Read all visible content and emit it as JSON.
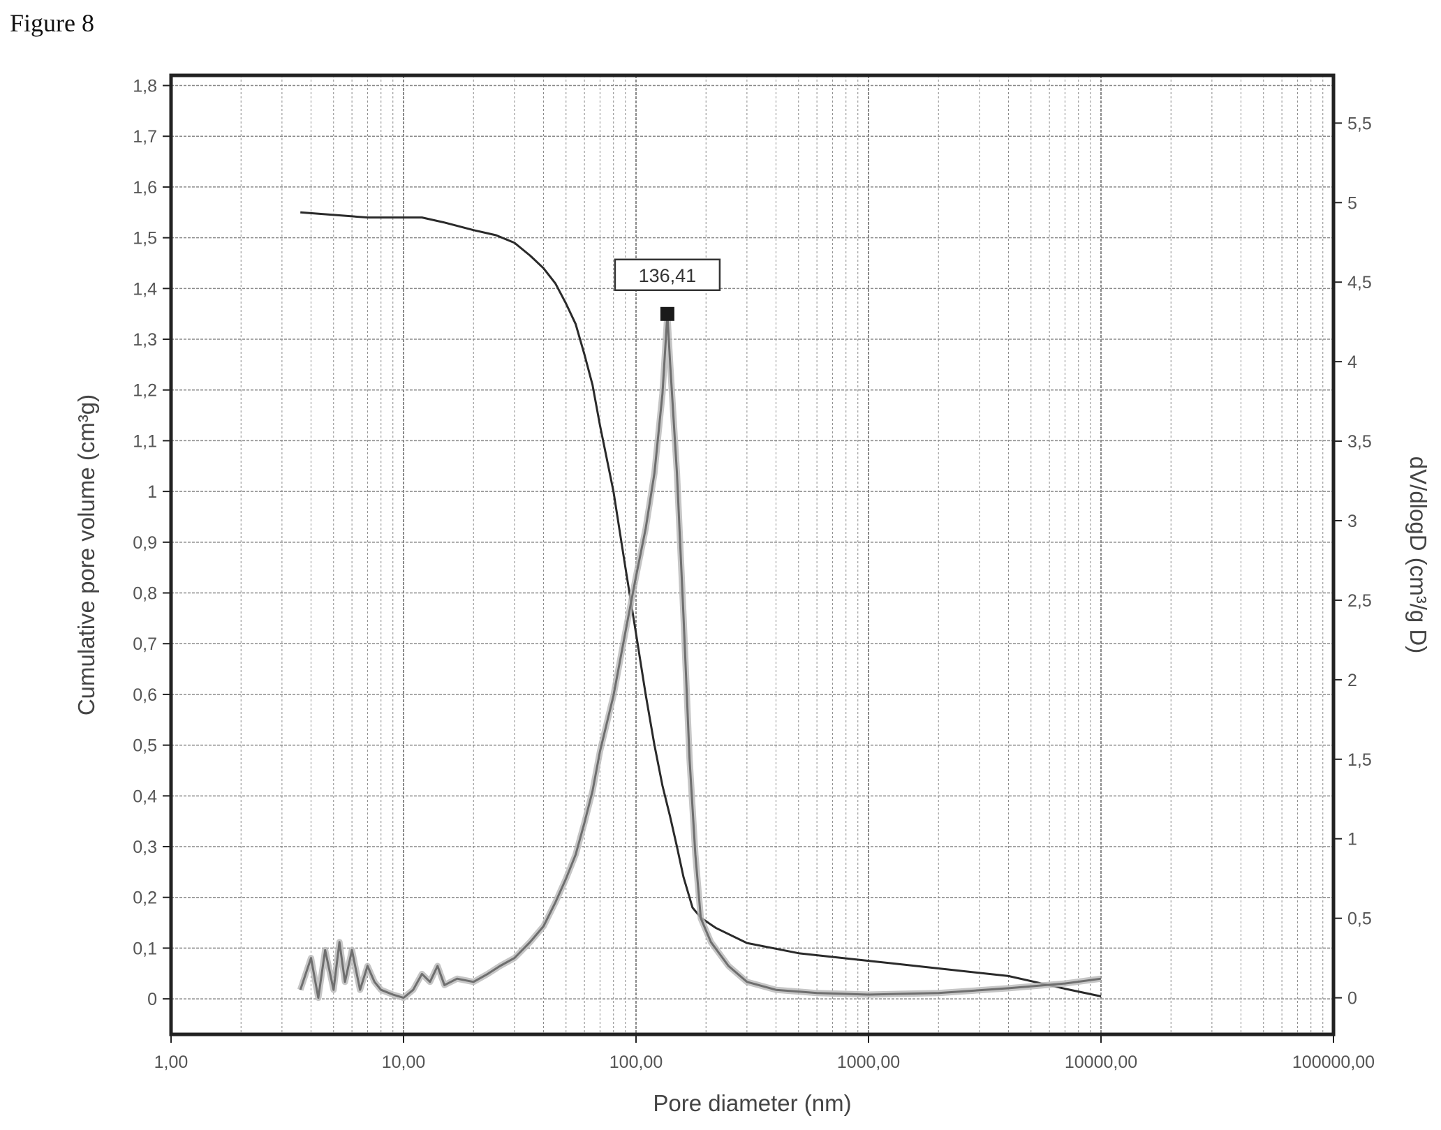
{
  "figure_label": "Figure 8",
  "colors": {
    "plot_frame": "#222222",
    "grid": "#8a8a8a",
    "cumulative_curve": "#2a2a2a",
    "distribution_curve": "#6e6e6e",
    "text": "#555555"
  },
  "chart_data": {
    "type": "line",
    "title": "",
    "xlabel": "Pore diameter (nm)",
    "ylabel": "Cumulative pore volume (cm³g)",
    "y2label": "dV/dlogD (cm³/g D)",
    "x_scale": "log",
    "xlim": [
      1,
      100000
    ],
    "ylim": [
      -0.07,
      1.82
    ],
    "y2lim": [
      -0.23,
      5.8
    ],
    "grid": true,
    "legend": "none",
    "x_ticks": [
      1,
      10,
      100,
      1000,
      10000,
      100000
    ],
    "x_tick_labels": [
      "1,00",
      "10,00",
      "100,00",
      "1000,00",
      "10000,00",
      "100000,00"
    ],
    "y_ticks": [
      0,
      0.1,
      0.2,
      0.3,
      0.4,
      0.5,
      0.6,
      0.7,
      0.8,
      0.9,
      1,
      1.1,
      1.2,
      1.3,
      1.4,
      1.5,
      1.6,
      1.7,
      1.8
    ],
    "y_tick_labels": [
      "0",
      "0,1",
      "0,2",
      "0,3",
      "0,4",
      "0,5",
      "0,6",
      "0,7",
      "0,8",
      "0,9",
      "1",
      "1,1",
      "1,2",
      "1,3",
      "1,4",
      "1,5",
      "1,6",
      "1,7",
      "1,8"
    ],
    "y2_ticks": [
      0,
      0.5,
      1,
      1.5,
      2,
      2.5,
      3,
      3.5,
      4,
      4.5,
      5,
      5.5
    ],
    "y2_tick_labels": [
      "0",
      "0,5",
      "1",
      "1,5",
      "2",
      "2,5",
      "3",
      "3,5",
      "4",
      "4,5",
      "5",
      "5,5"
    ],
    "series": [
      {
        "axis": "left",
        "points": [
          [
            3.6,
            1.55
          ],
          [
            5,
            1.545
          ],
          [
            7,
            1.54
          ],
          [
            10,
            1.54
          ],
          [
            12,
            1.54
          ],
          [
            15,
            1.53
          ],
          [
            20,
            1.515
          ],
          [
            25,
            1.505
          ],
          [
            30,
            1.49
          ],
          [
            35,
            1.465
          ],
          [
            40,
            1.44
          ],
          [
            45,
            1.41
          ],
          [
            50,
            1.37
          ],
          [
            55,
            1.33
          ],
          [
            60,
            1.27
          ],
          [
            65,
            1.21
          ],
          [
            70,
            1.13
          ],
          [
            80,
            1.0
          ],
          [
            90,
            0.85
          ],
          [
            100,
            0.72
          ],
          [
            110,
            0.6
          ],
          [
            120,
            0.5
          ],
          [
            130,
            0.42
          ],
          [
            140,
            0.36
          ],
          [
            150,
            0.3
          ],
          [
            160,
            0.24
          ],
          [
            175,
            0.18
          ],
          [
            190,
            0.16
          ],
          [
            220,
            0.14
          ],
          [
            300,
            0.11
          ],
          [
            500,
            0.09
          ],
          [
            1000,
            0.075
          ],
          [
            2000,
            0.06
          ],
          [
            4000,
            0.045
          ],
          [
            7000,
            0.02
          ],
          [
            10000,
            0.005
          ]
        ]
      },
      {
        "axis": "right",
        "points": [
          [
            3.6,
            0.05
          ],
          [
            4,
            0.25
          ],
          [
            4.3,
            0.0
          ],
          [
            4.6,
            0.3
          ],
          [
            5,
            0.05
          ],
          [
            5.3,
            0.35
          ],
          [
            5.6,
            0.1
          ],
          [
            6,
            0.3
          ],
          [
            6.5,
            0.05
          ],
          [
            7,
            0.2
          ],
          [
            7.5,
            0.1
          ],
          [
            8,
            0.05
          ],
          [
            9,
            0.02
          ],
          [
            10,
            0.0
          ],
          [
            11,
            0.05
          ],
          [
            12,
            0.15
          ],
          [
            13,
            0.1
          ],
          [
            14,
            0.2
          ],
          [
            15,
            0.08
          ],
          [
            17,
            0.12
          ],
          [
            20,
            0.1
          ],
          [
            23,
            0.15
          ],
          [
            26,
            0.2
          ],
          [
            30,
            0.25
          ],
          [
            35,
            0.35
          ],
          [
            40,
            0.45
          ],
          [
            45,
            0.6
          ],
          [
            50,
            0.75
          ],
          [
            55,
            0.9
          ],
          [
            60,
            1.1
          ],
          [
            65,
            1.3
          ],
          [
            70,
            1.55
          ],
          [
            80,
            1.9
          ],
          [
            90,
            2.3
          ],
          [
            100,
            2.65
          ],
          [
            110,
            2.95
          ],
          [
            120,
            3.3
          ],
          [
            130,
            3.8
          ],
          [
            136.41,
            4.3
          ],
          [
            140,
            4.0
          ],
          [
            150,
            3.3
          ],
          [
            160,
            2.4
          ],
          [
            170,
            1.5
          ],
          [
            180,
            0.9
          ],
          [
            190,
            0.5
          ],
          [
            210,
            0.35
          ],
          [
            250,
            0.2
          ],
          [
            300,
            0.1
          ],
          [
            400,
            0.05
          ],
          [
            600,
            0.03
          ],
          [
            1000,
            0.02
          ],
          [
            2000,
            0.03
          ],
          [
            4000,
            0.06
          ],
          [
            7000,
            0.09
          ],
          [
            10000,
            0.12
          ]
        ]
      }
    ],
    "annotations": [
      {
        "text": "136,41",
        "x": 136.41,
        "y2": 4.3
      }
    ]
  }
}
